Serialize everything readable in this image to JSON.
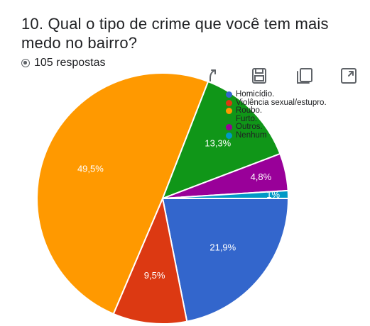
{
  "question": {
    "title": "10.  Qual o tipo de crime que você tem mais medo no bairro?",
    "responses": "105 respostas"
  },
  "toolbar": {
    "icons": [
      "copy-chart-icon",
      "save-icon",
      "copy-icon",
      "expand-icon"
    ]
  },
  "colors": {
    "homicidio": "#3366cc",
    "violencia": "#dc3912",
    "roubo": "#ff9900",
    "furto": "#109618",
    "outros": "#990099",
    "nenhum": "#0099c6"
  },
  "chart_data": {
    "type": "pie",
    "title": "",
    "legend_position": "top-right",
    "slices": [
      {
        "name": "Homicídio.",
        "value": 21.9,
        "label": "21,9%",
        "color": "#3366cc"
      },
      {
        "name": "Violência sexual/estupro.",
        "value": 9.5,
        "label": "9,5%",
        "color": "#dc3912"
      },
      {
        "name": "Roubo.",
        "value": 49.5,
        "label": "49,5%",
        "color": "#ff9900"
      },
      {
        "name": "Furto.",
        "value": 13.3,
        "label": "13,3%",
        "color": "#109618"
      },
      {
        "name": "Outros.",
        "value": 4.8,
        "label": "4,8%",
        "color": "#990099"
      },
      {
        "name": "Nenhum",
        "value": 1.0,
        "label": "1%",
        "color": "#0099c6"
      }
    ]
  }
}
